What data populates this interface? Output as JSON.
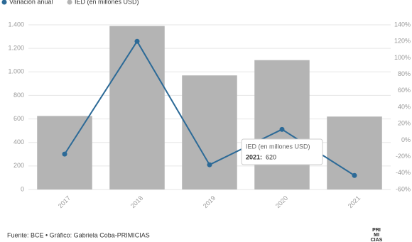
{
  "chart_data": {
    "type": "bar_line",
    "categories": [
      "2017",
      "2018",
      "2019",
      "2020",
      "2021"
    ],
    "series": [
      {
        "name": "IED (en millones USD)",
        "color": "#b4b4b4",
        "values": [
          625,
          1390,
          970,
          1100,
          620
        ]
      },
      {
        "name": "Variación anual",
        "color": "#2c6a97",
        "axis": "y2",
        "values": [
          -17,
          120,
          -30,
          13,
          -43
        ]
      }
    ],
    "ylim": [
      0,
      1400
    ],
    "yticks": [
      0,
      200,
      400,
      600,
      800,
      {
        "value": 1000,
        "label": "1.000"
      },
      {
        "value": 1200,
        "label": "1.200"
      },
      {
        "value": 1400,
        "label": "1.400"
      }
    ],
    "y2lim": [
      -60,
      140
    ],
    "y2ticks": [
      {
        "value": -60,
        "label": "-60%"
      },
      {
        "value": -40,
        "label": "-40%"
      },
      {
        "value": -20,
        "label": "-20%"
      },
      {
        "value": 0,
        "label": "0%"
      },
      {
        "value": 20,
        "label": "20%"
      },
      {
        "value": 40,
        "label": "40%"
      },
      {
        "value": 60,
        "label": "60%"
      },
      {
        "value": 80,
        "label": "80%"
      },
      {
        "value": 100,
        "label": "100%"
      },
      {
        "value": 120,
        "label": "120%"
      },
      {
        "value": 140,
        "label": "140%"
      }
    ],
    "grid": true,
    "tooltip": {
      "title": "IED (en millones USD)",
      "label": "2021:"
    },
    "source": "Fuente: BCE • Gráfico: Gabriela Coba-PRIMICIAS",
    "logo": [
      "PRI",
      "MI",
      "CIAS"
    ]
  }
}
